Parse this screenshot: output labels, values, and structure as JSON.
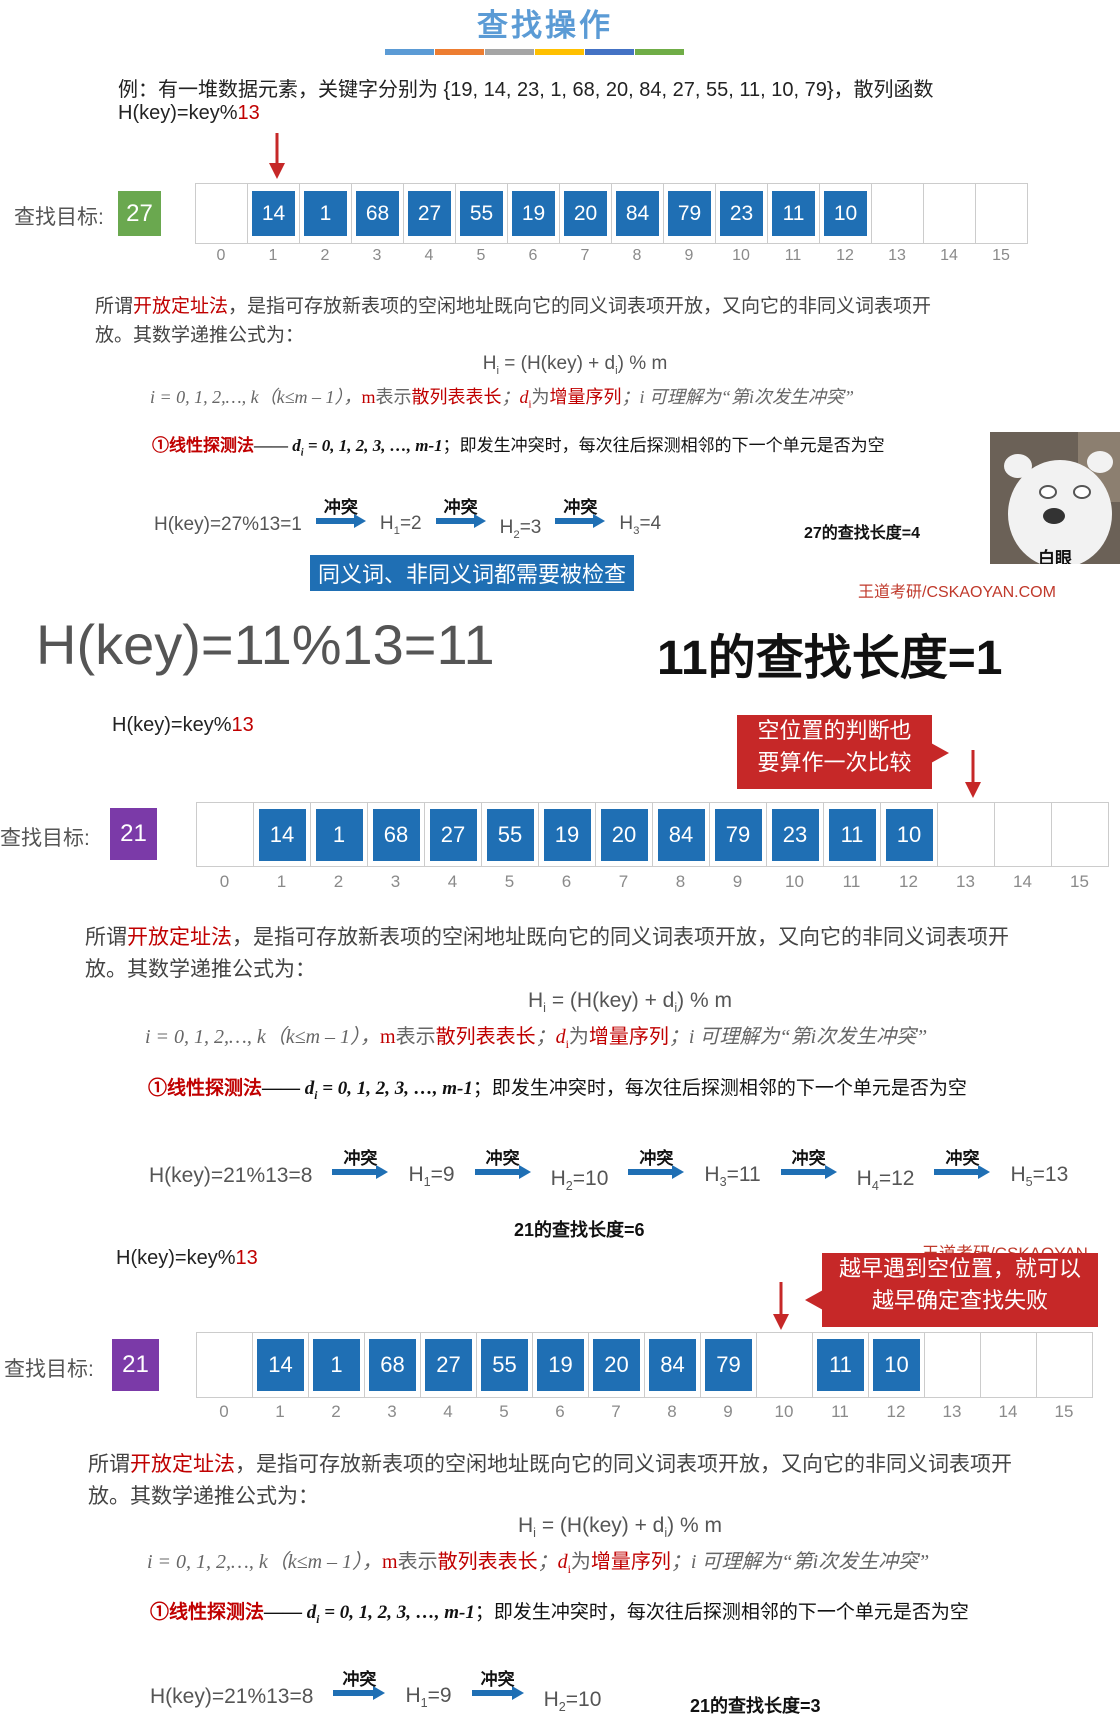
{
  "title": "查找操作",
  "colors": [
    "#5b9bd5",
    "#ed7d31",
    "#a5a5a5",
    "#ffc000",
    "#4472c4",
    "#70ad47"
  ],
  "intro": {
    "line1": "例：有一堆数据元素，关键字分别为 {19, 14, 23, 1, 68, 20, 84, 27, 55, 11, 10, 79}，散列函数",
    "line2_prefix": "H(key)=key%",
    "line2_mod": "13"
  },
  "target_label": "查找目标:",
  "section1": {
    "target": "27",
    "target_color": "#6aa84f",
    "cells": [
      "",
      "14",
      "1",
      "68",
      "27",
      "55",
      "19",
      "20",
      "84",
      "79",
      "23",
      "11",
      "10",
      "",
      "",
      ""
    ],
    "indices": [
      "0",
      "1",
      "2",
      "3",
      "4",
      "5",
      "6",
      "7",
      "8",
      "9",
      "10",
      "11",
      "12",
      "13",
      "14",
      "15"
    ],
    "chain_start": "H(key)=27%13=1",
    "chain": [
      {
        "label": "冲突",
        "to": "H",
        "sub": "1",
        "val": "=2"
      },
      {
        "label": "冲突",
        "to": "H",
        "sub": "2",
        "val": "=3"
      },
      {
        "label": "冲突",
        "to": "H",
        "sub": "3",
        "val": "=4"
      }
    ],
    "length": "27的查找长度=4",
    "banner": "同义词、非同义词都需要被检查",
    "watermark": "王道考研/CSKAOYAN.COM",
    "avatar_caption": "白眼"
  },
  "big": {
    "formula": "H(key)=11%13=11",
    "length": "11的查找长度=1"
  },
  "section2": {
    "hash_prefix": "H(key)=key%",
    "hash_mod": "13",
    "target": "21",
    "target_color": "#7b3aa8",
    "callout": [
      "空位置的判断也",
      "要算作一次比较"
    ],
    "cells": [
      "",
      "14",
      "1",
      "68",
      "27",
      "55",
      "19",
      "20",
      "84",
      "79",
      "23",
      "11",
      "10",
      "",
      "",
      ""
    ],
    "indices": [
      "0",
      "1",
      "2",
      "3",
      "4",
      "5",
      "6",
      "7",
      "8",
      "9",
      "10",
      "11",
      "12",
      "13",
      "14",
      "15"
    ],
    "chain_start": "H(key)=21%13=8",
    "chain": [
      {
        "label": "冲突",
        "to": "H",
        "sub": "1",
        "val": "=9"
      },
      {
        "label": "冲突",
        "to": "H",
        "sub": "2",
        "val": "=10"
      },
      {
        "label": "冲突",
        "to": "H",
        "sub": "3",
        "val": "=11"
      },
      {
        "label": "冲突",
        "to": "H",
        "sub": "4",
        "val": "=12"
      },
      {
        "label": "冲突",
        "to": "H",
        "sub": "5",
        "val": "=13"
      }
    ],
    "length": "21的查找长度=6",
    "watermark": "王道考研/CSKAOYAN"
  },
  "section3": {
    "hash_prefix": "H(key)=key%",
    "hash_mod": "13",
    "target": "21",
    "target_color": "#7b3aa8",
    "callout": [
      "越早遇到空位置，就可以",
      "越早确定查找失败"
    ],
    "cells": [
      "",
      "14",
      "1",
      "68",
      "27",
      "55",
      "19",
      "20",
      "84",
      "79",
      "",
      "11",
      "10",
      "",
      "",
      ""
    ],
    "indices": [
      "0",
      "1",
      "2",
      "3",
      "4",
      "5",
      "6",
      "7",
      "8",
      "9",
      "10",
      "11",
      "12",
      "13",
      "14",
      "15"
    ],
    "chain_start": "H(key)=21%13=8",
    "chain": [
      {
        "label": "冲突",
        "to": "H",
        "sub": "1",
        "val": "=9"
      },
      {
        "label": "冲突",
        "to": "H",
        "sub": "2",
        "val": "=10"
      }
    ],
    "length": "21的查找长度=3"
  },
  "theory": {
    "p1_a": "所谓",
    "p1_red": "开放定址法",
    "p1_b": "，是指可存放新表项的空闲地址既向它的同义词表项开放，又向它的非同义词表项开",
    "p1_c": "放。其数学递推公式为：",
    "formula_a": "H",
    "formula_sub": "i",
    "formula_b": " = (H(key) + d",
    "formula_sub2": "i",
    "formula_c": ") % m",
    "line3_a": "i = 0, 1, 2,…, k（k≤m – 1），",
    "line3_m": "m",
    "line3_b": "表示",
    "line3_red1": "散列表表长",
    "line3_c": "；",
    "line3_d": "d",
    "line3_dsub": "i",
    "line3_e": "为",
    "line3_red2": "增量序列",
    "line3_f": "；i 可理解为“第i次发生冲突”",
    "probe_red": "①线性探测法",
    "probe_a": "—— ",
    "probe_d": "d",
    "probe_dsub": "i",
    "probe_b": " = 0, 1, 2, 3, …, m-1",
    "probe_c": "；即发生冲突时，每次往后探测相邻的下一个单元是否为空"
  }
}
